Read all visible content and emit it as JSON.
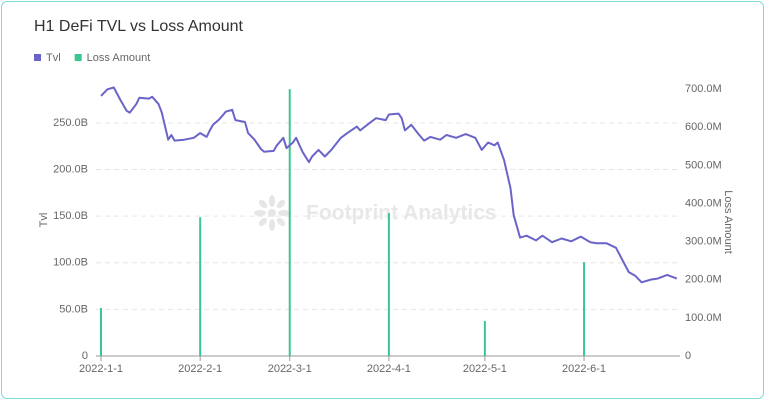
{
  "chart_data": {
    "type": "combo",
    "title": "H1 DeFi TVL vs Loss Amount",
    "watermark": "Footprint Analytics",
    "y_label": "Tvl",
    "y2_label": "Loss Amount",
    "xlim": [
      "2022-01-01",
      "2022-07-01"
    ],
    "xticks": [
      {
        "value": "2022-01-01",
        "label": "2022-1-1"
      },
      {
        "value": "2022-02-01",
        "label": "2022-2-1"
      },
      {
        "value": "2022-03-01",
        "label": "2022-3-1"
      },
      {
        "value": "2022-04-01",
        "label": "2022-4-1"
      },
      {
        "value": "2022-05-01",
        "label": "2022-5-1"
      },
      {
        "value": "2022-06-01",
        "label": "2022-6-1"
      }
    ],
    "ylim": [
      0,
      296
    ],
    "yticks": [
      0,
      {
        "value": 50,
        "label": "50.0B"
      },
      {
        "value": 100,
        "label": "100.0B"
      },
      {
        "value": 150,
        "label": "150.0B"
      },
      {
        "value": 200,
        "label": "200.0B"
      },
      {
        "value": 250,
        "label": "250.0B"
      }
    ],
    "y2lim": [
      0,
      724
    ],
    "y2ticks": [
      0,
      {
        "value": 100,
        "label": "100.0M"
      },
      {
        "value": 200,
        "label": "200.0M"
      },
      {
        "value": 300,
        "label": "300.0M"
      },
      {
        "value": 400,
        "label": "400.0M"
      },
      {
        "value": 500,
        "label": "500.0M"
      },
      {
        "value": 600,
        "label": "600.0M"
      },
      {
        "value": 700,
        "label": "700.0M"
      }
    ],
    "grid": true,
    "series": [
      {
        "name": "Tvl",
        "type": "line",
        "color": "#6b64c8",
        "x": [
          "2022-01-01",
          "2022-01-03",
          "2022-01-05",
          "2022-01-07",
          "2022-01-09",
          "2022-01-10",
          "2022-01-12",
          "2022-01-13",
          "2022-01-16",
          "2022-01-17",
          "2022-01-19",
          "2022-01-20",
          "2022-01-22",
          "2022-01-23",
          "2022-01-24",
          "2022-01-27",
          "2022-01-30",
          "2022-02-01",
          "2022-02-03",
          "2022-02-04",
          "2022-02-05",
          "2022-02-07",
          "2022-02-09",
          "2022-02-11",
          "2022-02-12",
          "2022-02-15",
          "2022-02-16",
          "2022-02-18",
          "2022-02-20",
          "2022-02-21",
          "2022-02-24",
          "2022-02-25",
          "2022-02-27",
          "2022-02-28",
          "2022-03-02",
          "2022-03-03",
          "2022-03-05",
          "2022-03-07",
          "2022-03-08",
          "2022-03-10",
          "2022-03-12",
          "2022-03-14",
          "2022-03-17",
          "2022-03-19",
          "2022-03-22",
          "2022-03-23",
          "2022-03-26",
          "2022-03-28",
          "2022-03-31",
          "2022-04-01",
          "2022-04-04",
          "2022-04-05",
          "2022-04-06",
          "2022-04-08",
          "2022-04-10",
          "2022-04-12",
          "2022-04-14",
          "2022-04-17",
          "2022-04-19",
          "2022-04-22",
          "2022-04-25",
          "2022-04-28",
          "2022-04-30",
          "2022-05-02",
          "2022-05-04",
          "2022-05-05",
          "2022-05-07",
          "2022-05-09",
          "2022-05-10",
          "2022-05-12",
          "2022-05-14",
          "2022-05-17",
          "2022-05-19",
          "2022-05-22",
          "2022-05-25",
          "2022-05-28",
          "2022-05-31",
          "2022-06-03",
          "2022-06-05",
          "2022-06-08",
          "2022-06-11",
          "2022-06-13",
          "2022-06-15",
          "2022-06-17",
          "2022-06-19",
          "2022-06-22",
          "2022-06-24",
          "2022-06-27",
          "2022-06-30"
        ],
        "values": [
          279,
          286,
          288,
          275,
          263,
          261,
          270,
          277,
          276,
          278,
          270,
          261,
          232,
          237,
          231,
          232,
          234,
          239,
          235,
          242,
          248,
          254,
          262,
          264,
          253,
          251,
          239,
          232,
          222,
          219,
          220,
          226,
          234,
          223,
          229,
          234,
          219,
          208,
          214,
          221,
          214,
          221,
          234,
          239,
          246,
          242,
          250,
          255,
          253,
          259,
          260,
          255,
          242,
          248,
          239,
          231,
          235,
          232,
          237,
          234,
          238,
          234,
          221,
          229,
          226,
          229,
          210,
          180,
          151,
          127,
          129,
          124,
          129,
          122,
          126,
          123,
          128,
          122,
          121,
          121,
          116,
          103,
          90,
          86,
          79,
          82,
          83,
          87,
          83
        ]
      },
      {
        "name": "Loss Amount",
        "type": "bar",
        "axis": "y2",
        "color": "#3cc68f",
        "x": [
          "2022-01-01",
          "2022-02-01",
          "2022-03-01",
          "2022-04-01",
          "2022-05-01",
          "2022-06-01"
        ],
        "values": [
          126,
          364,
          700,
          375,
          92,
          246
        ]
      }
    ]
  }
}
